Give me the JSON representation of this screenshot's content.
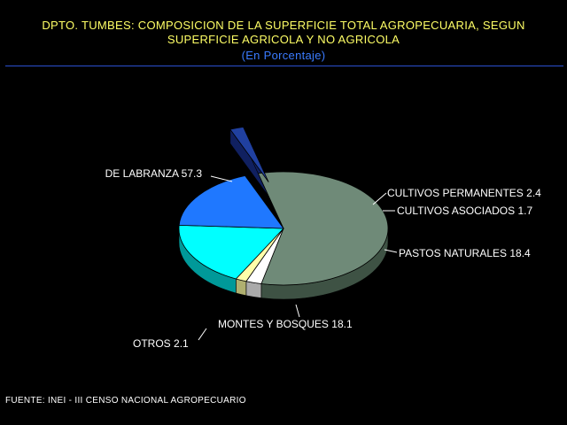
{
  "header": {
    "title_line1": "DPTO. TUMBES: COMPOSICION DE LA SUPERFICIE TOTAL AGROPECUARIA, SEGUN",
    "title_line2": "SUPERFICIE AGRICOLA Y NO AGRICOLA",
    "subtitle": "(En Porcentaje)"
  },
  "footer": {
    "source": "FUENTE: INEI - III CENSO NACIONAL AGROPECUARIO"
  },
  "chart_data": {
    "type": "pie",
    "title": "DPTO. TUMBES: COMPOSICION DE LA SUPERFICIE TOTAL AGROPECUARIA, SEGUN SUPERFICIE AGRICOLA Y NO AGRICOLA",
    "subtitle": "(En Porcentaje)",
    "style": "3d-exploded",
    "categories": [
      "DE LABRANZA",
      "CULTIVOS PERMANENTES",
      "CULTIVOS ASOCIADOS",
      "PASTOS NATURALES",
      "MONTES Y BOSQUES",
      "OTROS"
    ],
    "values": [
      57.3,
      2.4,
      1.7,
      18.4,
      18.1,
      2.1
    ],
    "value_labels": [
      "57.3",
      "2.4",
      "1.7",
      "18.4",
      "18.1",
      "2.1"
    ],
    "colors": [
      "#6f8a78",
      "#ffffff",
      "#ffffaa",
      "#00ffff",
      "#1f78ff",
      "#2040a0"
    ],
    "side_colors": [
      "#3e5244",
      "#aaaaaa",
      "#b0b070",
      "#009999",
      "#0c4aa8",
      "#102060"
    ],
    "exploded": [
      "OTROS"
    ]
  }
}
